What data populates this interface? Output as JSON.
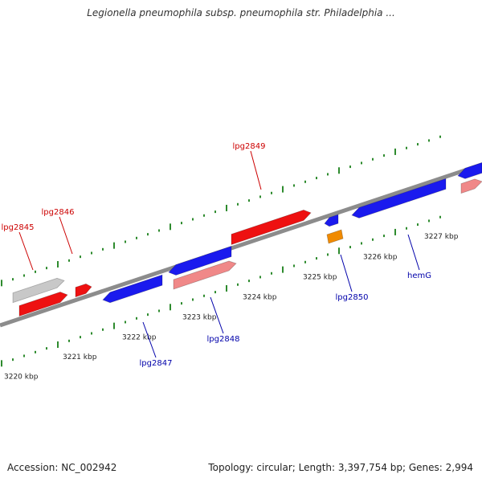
{
  "title": "Legionella pneumophila subsp. pneumophila str. Philadelphia ...",
  "footer": {
    "accession": "Accession: NC_002942",
    "summary": "Topology: circular; Length: 3,397,754 bp; Genes: 2,994"
  },
  "colors": {
    "backbone": "#8c8c8c",
    "tick": "#2e8b2e",
    "forward_gene": "#ee1111",
    "reverse_gene": "#1a1aee",
    "pseudo_gene": "#c8c8c8",
    "forward_light": "#f08888",
    "rna_gene": "#f08a00",
    "forward_label": "#cc0000",
    "reverse_label": "#0000aa"
  },
  "scale_labels": [
    "3220 kbp",
    "3221 kbp",
    "3222 kbp",
    "3223 kbp",
    "3224 kbp",
    "3225 kbp",
    "3226 kbp",
    "3227 kbp"
  ],
  "genes": [
    {
      "name": "lpg2845",
      "strand": "+",
      "color": "forward_gene"
    },
    {
      "name": "",
      "strand": "+",
      "color": "pseudo_gene"
    },
    {
      "name": "lpg2846",
      "strand": "+",
      "color": "forward_gene"
    },
    {
      "name": "lpg2847",
      "strand": "-",
      "color": "reverse_gene"
    },
    {
      "name": "lpg2848",
      "strand": "-",
      "color": "reverse_gene"
    },
    {
      "name": "",
      "strand": "+",
      "color": "forward_light"
    },
    {
      "name": "lpg2849",
      "strand": "+",
      "color": "forward_gene"
    },
    {
      "name": "lpg2850",
      "strand": "-",
      "color": "reverse_gene"
    },
    {
      "name": "",
      "strand": "-",
      "color": "rna_gene"
    },
    {
      "name": "hemG",
      "strand": "-",
      "color": "reverse_gene"
    },
    {
      "name": "",
      "strand": "-",
      "color": "reverse_gene"
    },
    {
      "name": "",
      "strand": "+",
      "color": "forward_light"
    }
  ]
}
